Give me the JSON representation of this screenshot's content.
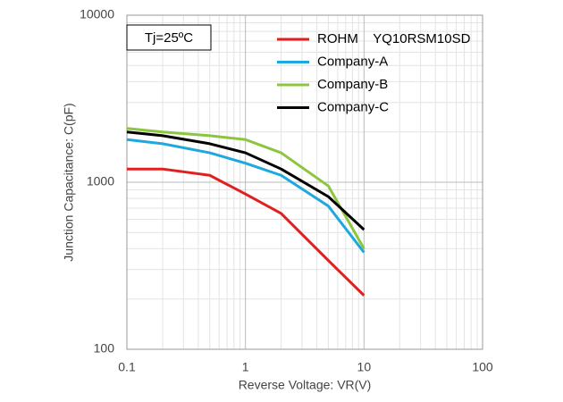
{
  "chart_data": {
    "type": "line",
    "annotation": "Tj=25ºC",
    "x_label": "Reverse Voltage: VR(V)",
    "y_label": "Junction Capacitance: C(pF)",
    "x": [
      0.1,
      0.2,
      0.5,
      1,
      2,
      5,
      10
    ],
    "series": [
      {
        "name": "ROHM    YQ10RSM10SD",
        "color": "#e02020",
        "values": [
          1200,
          1200,
          1100,
          850,
          650,
          340,
          210
        ]
      },
      {
        "name": "Company-A",
        "color": "#1ea8e0",
        "values": [
          1800,
          1700,
          1500,
          1300,
          1100,
          720,
          380
        ]
      },
      {
        "name": "Company-B",
        "color": "#8cc63f",
        "values": [
          2100,
          2000,
          1900,
          1800,
          1500,
          950,
          400
        ]
      },
      {
        "name": "Company-C",
        "color": "#000000",
        "values": [
          2000,
          1900,
          1700,
          1500,
          1200,
          820,
          520
        ]
      }
    ],
    "xlim": [
      0.1,
      100
    ],
    "xticks": [
      0.1,
      1,
      10,
      100
    ],
    "ylim": [
      100,
      10000
    ],
    "yticks": [
      100,
      1000,
      10000
    ],
    "x_log": true,
    "y_log": true,
    "grid": true,
    "minor_grid": true
  }
}
